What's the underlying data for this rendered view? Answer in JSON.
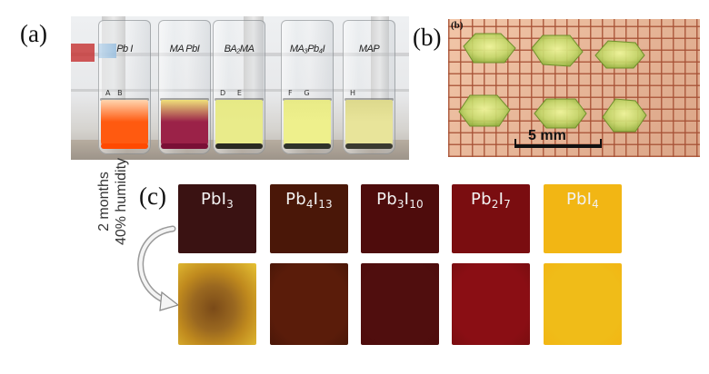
{
  "panel_labels": {
    "a": "(a)",
    "b": "(b)",
    "b_inner": "(b)",
    "c": "(c)"
  },
  "panel_a": {
    "vials": [
      {
        "cap": "Pb I",
        "letters": "A   B",
        "liquid": "#ff5a10",
        "liquid_top": "#ffd6b0",
        "sediment": "#ff4a00"
      },
      {
        "cap": "MA PbI",
        "letters": "",
        "liquid": "#9b2248",
        "liquid_top": "#efe07a",
        "sediment": "#7a1036"
      },
      {
        "cap": "BA₂MA",
        "letters": "D     E",
        "liquid": "#e9eb8a",
        "liquid_top": "#e6e985",
        "sediment": "#2a2a22"
      },
      {
        "cap": "MA₃Pb₄I",
        "letters": "F     G",
        "liquid": "#eef08c",
        "liquid_top": "#e8ea86",
        "sediment": "#2f332a"
      },
      {
        "cap": "MAP",
        "letters": "H",
        "liquid": "#e8e49a",
        "liquid_top": "#ddd98c",
        "sediment": "#3a3a30"
      }
    ]
  },
  "panel_b": {
    "scale_label": "5 mm",
    "crystal_color": "#c8dc6a"
  },
  "panel_c": {
    "side_label_line1": "2 months",
    "side_label_line2": "40% humidity",
    "columns": [
      {
        "name": "PbI",
        "sub": "3",
        "name2": "",
        "sub2": "",
        "top_color": "#3a1212",
        "bottom_color": "#c08a1e"
      },
      {
        "name": "Pb",
        "sub": "4",
        "name2": "I",
        "sub2": "13",
        "top_color": "#4a1708",
        "bottom_color": "#5a1c0a"
      },
      {
        "name": "Pb",
        "sub": "3",
        "name2": "I",
        "sub2": "10",
        "top_color": "#4e0c0c",
        "bottom_color": "#500e0e"
      },
      {
        "name": "Pb",
        "sub": "2",
        "name2": "I",
        "sub2": "7",
        "top_color": "#7a0d10",
        "bottom_color": "#8a0e14"
      },
      {
        "name": "PbI",
        "sub": "4",
        "name2": "",
        "sub2": "",
        "top_color": "#f2b614",
        "bottom_color": "#f0bc18"
      }
    ]
  }
}
